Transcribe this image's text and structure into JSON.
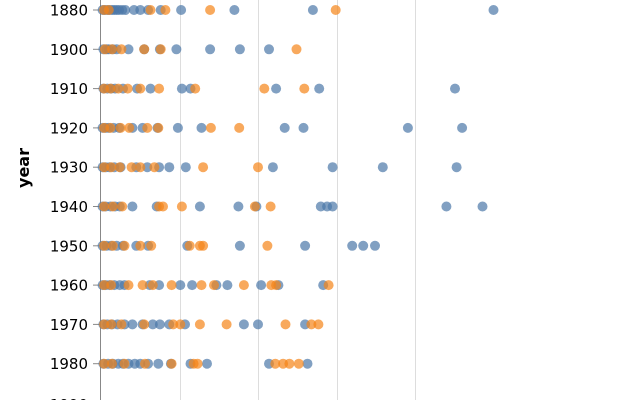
{
  "chart_data": {
    "type": "scatter",
    "title": "",
    "xlabel": "",
    "ylabel": "year",
    "xlim": [
      0,
      50
    ],
    "x_gridlines": [
      10,
      20,
      30,
      40
    ],
    "y_ticks": [
      1880,
      1900,
      1910,
      1920,
      1930,
      1940,
      1950,
      1960,
      1970,
      1980
    ],
    "grid": true,
    "legend": "none",
    "marker": "circle",
    "series": [
      {
        "color": "#4c78a8",
        "points": [
          {
            "year": 1880,
            "x": 0.2
          },
          {
            "year": 1880,
            "x": 0.5
          },
          {
            "year": 1880,
            "x": 0.8
          },
          {
            "year": 1880,
            "x": 1.1
          },
          {
            "year": 1880,
            "x": 1.4
          },
          {
            "year": 1880,
            "x": 1.7
          },
          {
            "year": 1880,
            "x": 2.0
          },
          {
            "year": 1880,
            "x": 2.3
          },
          {
            "year": 1880,
            "x": 2.7
          },
          {
            "year": 1880,
            "x": 3.1
          },
          {
            "year": 1880,
            "x": 4.2
          },
          {
            "year": 1880,
            "x": 5.0
          },
          {
            "year": 1880,
            "x": 6.0
          },
          {
            "year": 1880,
            "x": 7.6
          },
          {
            "year": 1880,
            "x": 10.2
          },
          {
            "year": 1880,
            "x": 17.0
          },
          {
            "year": 1880,
            "x": 27.0
          },
          {
            "year": 1880,
            "x": 50.0
          },
          {
            "year": 1900,
            "x": 0.3
          },
          {
            "year": 1900,
            "x": 0.7
          },
          {
            "year": 1900,
            "x": 1.0
          },
          {
            "year": 1900,
            "x": 1.5
          },
          {
            "year": 1900,
            "x": 2.0
          },
          {
            "year": 1900,
            "x": 3.5
          },
          {
            "year": 1900,
            "x": 5.5
          },
          {
            "year": 1900,
            "x": 7.5
          },
          {
            "year": 1900,
            "x": 9.6
          },
          {
            "year": 1900,
            "x": 13.9
          },
          {
            "year": 1900,
            "x": 17.7
          },
          {
            "year": 1900,
            "x": 21.4
          },
          {
            "year": 1910,
            "x": 0.3
          },
          {
            "year": 1910,
            "x": 0.8
          },
          {
            "year": 1910,
            "x": 1.3
          },
          {
            "year": 1910,
            "x": 1.8
          },
          {
            "year": 1910,
            "x": 2.8
          },
          {
            "year": 1910,
            "x": 4.6
          },
          {
            "year": 1910,
            "x": 6.3
          },
          {
            "year": 1910,
            "x": 10.3
          },
          {
            "year": 1910,
            "x": 11.4
          },
          {
            "year": 1910,
            "x": 22.3
          },
          {
            "year": 1910,
            "x": 27.8
          },
          {
            "year": 1910,
            "x": 45.1
          },
          {
            "year": 1920,
            "x": 0.2
          },
          {
            "year": 1920,
            "x": 0.6
          },
          {
            "year": 1920,
            "x": 1.0
          },
          {
            "year": 1920,
            "x": 1.6
          },
          {
            "year": 1920,
            "x": 2.3
          },
          {
            "year": 1920,
            "x": 4.0
          },
          {
            "year": 1920,
            "x": 5.3
          },
          {
            "year": 1920,
            "x": 7.2
          },
          {
            "year": 1920,
            "x": 9.8
          },
          {
            "year": 1920,
            "x": 12.8
          },
          {
            "year": 1920,
            "x": 23.4
          },
          {
            "year": 1920,
            "x": 25.8
          },
          {
            "year": 1920,
            "x": 39.1
          },
          {
            "year": 1920,
            "x": 46.0
          },
          {
            "year": 1930,
            "x": 0.2
          },
          {
            "year": 1930,
            "x": 0.6
          },
          {
            "year": 1930,
            "x": 1.1
          },
          {
            "year": 1930,
            "x": 1.7
          },
          {
            "year": 1930,
            "x": 2.5
          },
          {
            "year": 1930,
            "x": 4.5
          },
          {
            "year": 1930,
            "x": 5.9
          },
          {
            "year": 1930,
            "x": 7.4
          },
          {
            "year": 1930,
            "x": 8.7
          },
          {
            "year": 1930,
            "x": 10.8
          },
          {
            "year": 1930,
            "x": 21.9
          },
          {
            "year": 1930,
            "x": 29.5
          },
          {
            "year": 1930,
            "x": 35.9
          },
          {
            "year": 1930,
            "x": 45.3
          },
          {
            "year": 1940,
            "x": 0.2
          },
          {
            "year": 1940,
            "x": 0.6
          },
          {
            "year": 1940,
            "x": 1.2
          },
          {
            "year": 1940,
            "x": 1.8
          },
          {
            "year": 1940,
            "x": 2.4
          },
          {
            "year": 1940,
            "x": 4.0
          },
          {
            "year": 1940,
            "x": 7.1
          },
          {
            "year": 1940,
            "x": 12.6
          },
          {
            "year": 1940,
            "x": 17.5
          },
          {
            "year": 1940,
            "x": 19.8
          },
          {
            "year": 1940,
            "x": 28.0
          },
          {
            "year": 1940,
            "x": 28.8
          },
          {
            "year": 1940,
            "x": 29.5
          },
          {
            "year": 1940,
            "x": 44.0
          },
          {
            "year": 1940,
            "x": 48.6
          },
          {
            "year": 1950,
            "x": 0.2
          },
          {
            "year": 1950,
            "x": 0.7
          },
          {
            "year": 1950,
            "x": 1.3
          },
          {
            "year": 1950,
            "x": 2.0
          },
          {
            "year": 1950,
            "x": 2.8
          },
          {
            "year": 1950,
            "x": 4.5
          },
          {
            "year": 1950,
            "x": 6.0
          },
          {
            "year": 1950,
            "x": 11.0
          },
          {
            "year": 1950,
            "x": 17.7
          },
          {
            "year": 1950,
            "x": 26.0
          },
          {
            "year": 1950,
            "x": 32.0
          },
          {
            "year": 1950,
            "x": 33.4
          },
          {
            "year": 1950,
            "x": 34.9
          },
          {
            "year": 1960,
            "x": 0.2
          },
          {
            "year": 1960,
            "x": 0.6
          },
          {
            "year": 1960,
            "x": 1.1
          },
          {
            "year": 1960,
            "x": 1.7
          },
          {
            "year": 1960,
            "x": 2.4
          },
          {
            "year": 1960,
            "x": 3.0
          },
          {
            "year": 1960,
            "x": 6.2
          },
          {
            "year": 1960,
            "x": 7.4
          },
          {
            "year": 1960,
            "x": 10.1
          },
          {
            "year": 1960,
            "x": 11.6
          },
          {
            "year": 1960,
            "x": 14.7
          },
          {
            "year": 1960,
            "x": 16.1
          },
          {
            "year": 1960,
            "x": 20.4
          },
          {
            "year": 1960,
            "x": 22.6
          },
          {
            "year": 1960,
            "x": 28.3
          },
          {
            "year": 1970,
            "x": 0.3
          },
          {
            "year": 1970,
            "x": 0.8
          },
          {
            "year": 1970,
            "x": 1.4
          },
          {
            "year": 1970,
            "x": 2.1
          },
          {
            "year": 1970,
            "x": 3.0
          },
          {
            "year": 1970,
            "x": 4.0
          },
          {
            "year": 1970,
            "x": 5.3
          },
          {
            "year": 1970,
            "x": 6.6
          },
          {
            "year": 1970,
            "x": 7.5
          },
          {
            "year": 1970,
            "x": 8.7
          },
          {
            "year": 1970,
            "x": 10.7
          },
          {
            "year": 1970,
            "x": 18.2
          },
          {
            "year": 1970,
            "x": 20.0
          },
          {
            "year": 1970,
            "x": 26.0
          },
          {
            "year": 1980,
            "x": 0.3
          },
          {
            "year": 1980,
            "x": 0.9
          },
          {
            "year": 1980,
            "x": 1.5
          },
          {
            "year": 1980,
            "x": 2.2
          },
          {
            "year": 1980,
            "x": 2.8
          },
          {
            "year": 1980,
            "x": 3.5
          },
          {
            "year": 1980,
            "x": 4.3
          },
          {
            "year": 1980,
            "x": 5.0
          },
          {
            "year": 1980,
            "x": 6.0
          },
          {
            "year": 1980,
            "x": 7.3
          },
          {
            "year": 1980,
            "x": 8.9
          },
          {
            "year": 1980,
            "x": 11.4
          },
          {
            "year": 1980,
            "x": 13.5
          },
          {
            "year": 1980,
            "x": 21.4
          },
          {
            "year": 1980,
            "x": 26.3
          }
        ]
      },
      {
        "color": "#f58518",
        "points": [
          {
            "year": 1880,
            "x": 0.4
          },
          {
            "year": 1880,
            "x": 1.0
          },
          {
            "year": 1880,
            "x": 6.3
          },
          {
            "year": 1880,
            "x": 8.2
          },
          {
            "year": 1880,
            "x": 13.9
          },
          {
            "year": 1880,
            "x": 29.9
          },
          {
            "year": 1900,
            "x": 0.5
          },
          {
            "year": 1900,
            "x": 1.4
          },
          {
            "year": 1900,
            "x": 2.6
          },
          {
            "year": 1900,
            "x": 5.5
          },
          {
            "year": 1900,
            "x": 7.6
          },
          {
            "year": 1900,
            "x": 24.9
          },
          {
            "year": 1910,
            "x": 0.4
          },
          {
            "year": 1910,
            "x": 1.2
          },
          {
            "year": 1910,
            "x": 2.2
          },
          {
            "year": 1910,
            "x": 3.4
          },
          {
            "year": 1910,
            "x": 5.0
          },
          {
            "year": 1910,
            "x": 7.4
          },
          {
            "year": 1910,
            "x": 12.0
          },
          {
            "year": 1910,
            "x": 20.8
          },
          {
            "year": 1910,
            "x": 25.9
          },
          {
            "year": 1920,
            "x": 0.4
          },
          {
            "year": 1920,
            "x": 1.2
          },
          {
            "year": 1920,
            "x": 2.5
          },
          {
            "year": 1920,
            "x": 3.6
          },
          {
            "year": 1920,
            "x": 5.9
          },
          {
            "year": 1920,
            "x": 7.3
          },
          {
            "year": 1920,
            "x": 14.0
          },
          {
            "year": 1920,
            "x": 17.6
          },
          {
            "year": 1930,
            "x": 0.4
          },
          {
            "year": 1930,
            "x": 1.3
          },
          {
            "year": 1930,
            "x": 2.4
          },
          {
            "year": 1930,
            "x": 3.9
          },
          {
            "year": 1930,
            "x": 5.0
          },
          {
            "year": 1930,
            "x": 6.8
          },
          {
            "year": 1930,
            "x": 13.0
          },
          {
            "year": 1930,
            "x": 20.0
          },
          {
            "year": 1940,
            "x": 0.4
          },
          {
            "year": 1940,
            "x": 1.5
          },
          {
            "year": 1940,
            "x": 2.7
          },
          {
            "year": 1940,
            "x": 7.4
          },
          {
            "year": 1940,
            "x": 7.9
          },
          {
            "year": 1940,
            "x": 10.3
          },
          {
            "year": 1940,
            "x": 19.6
          },
          {
            "year": 1940,
            "x": 21.6
          },
          {
            "year": 1950,
            "x": 0.4
          },
          {
            "year": 1950,
            "x": 1.5
          },
          {
            "year": 1950,
            "x": 3.0
          },
          {
            "year": 1950,
            "x": 5.0
          },
          {
            "year": 1950,
            "x": 6.4
          },
          {
            "year": 1950,
            "x": 11.3
          },
          {
            "year": 1950,
            "x": 12.6
          },
          {
            "year": 1950,
            "x": 13.0
          },
          {
            "year": 1950,
            "x": 21.2
          },
          {
            "year": 1960,
            "x": 0.4
          },
          {
            "year": 1960,
            "x": 1.3
          },
          {
            "year": 1960,
            "x": 3.5
          },
          {
            "year": 1960,
            "x": 5.3
          },
          {
            "year": 1960,
            "x": 6.6
          },
          {
            "year": 1960,
            "x": 9.0
          },
          {
            "year": 1960,
            "x": 12.8
          },
          {
            "year": 1960,
            "x": 14.4
          },
          {
            "year": 1960,
            "x": 18.2
          },
          {
            "year": 1960,
            "x": 21.7
          },
          {
            "year": 1960,
            "x": 22.3
          },
          {
            "year": 1960,
            "x": 29.0
          },
          {
            "year": 1970,
            "x": 0.4
          },
          {
            "year": 1970,
            "x": 1.3
          },
          {
            "year": 1970,
            "x": 2.6
          },
          {
            "year": 1970,
            "x": 5.5
          },
          {
            "year": 1970,
            "x": 9.2
          },
          {
            "year": 1970,
            "x": 10.1
          },
          {
            "year": 1970,
            "x": 12.6
          },
          {
            "year": 1970,
            "x": 16.0
          },
          {
            "year": 1970,
            "x": 23.5
          },
          {
            "year": 1970,
            "x": 26.8
          },
          {
            "year": 1970,
            "x": 27.7
          },
          {
            "year": 1980,
            "x": 0.4
          },
          {
            "year": 1980,
            "x": 1.4
          },
          {
            "year": 1980,
            "x": 3.0
          },
          {
            "year": 1980,
            "x": 5.6
          },
          {
            "year": 1980,
            "x": 9.0
          },
          {
            "year": 1980,
            "x": 11.8
          },
          {
            "year": 1980,
            "x": 12.3
          },
          {
            "year": 1980,
            "x": 22.2
          },
          {
            "year": 1980,
            "x": 23.2
          },
          {
            "year": 1980,
            "x": 24.0
          },
          {
            "year": 1980,
            "x": 25.2
          }
        ]
      }
    ]
  }
}
